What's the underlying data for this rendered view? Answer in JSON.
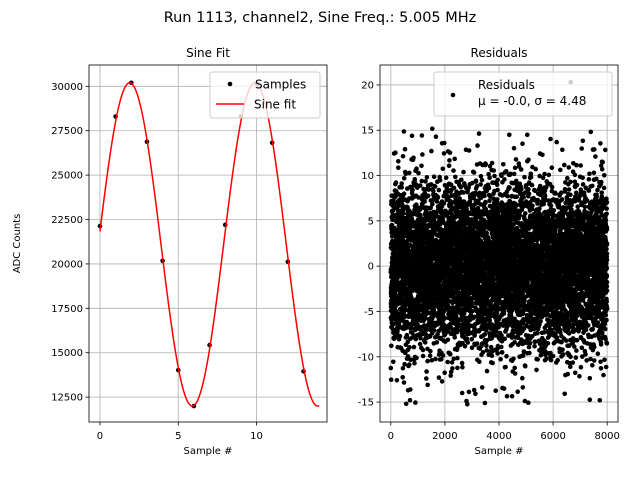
{
  "title": "Run 1113, channel2, Sine Freq.: 5.005 MHz",
  "chart_data": [
    {
      "type": "line",
      "title": "Sine Fit",
      "xlabel": "Sample #",
      "ylabel": "ADC Counts",
      "xlim": [
        -0.7,
        14.5
      ],
      "ylim": [
        11100,
        31200
      ],
      "xticks": [
        0,
        5,
        10
      ],
      "yticks": [
        12500,
        15000,
        17500,
        20000,
        22500,
        25000,
        27500,
        30000
      ],
      "grid": true,
      "legend_placement": "upper right",
      "series": [
        {
          "name": "Samples",
          "style": "points",
          "color": "#000000",
          "x": [
            0,
            1,
            2,
            3,
            4,
            5,
            6,
            7,
            8,
            9,
            10,
            11,
            12,
            13
          ],
          "y": [
            22130,
            28300,
            30200,
            26880,
            20170,
            14020,
            12000,
            15430,
            22200,
            28300,
            30150,
            26820,
            20120,
            13950
          ]
        },
        {
          "name": "Sine fit",
          "style": "line",
          "color": "#ff0000",
          "offset": 21100,
          "amplitude": 9100,
          "period": 8.0,
          "phase": 0.08,
          "x_range": [
            0,
            14
          ]
        }
      ]
    },
    {
      "type": "scatter",
      "title": "Residuals",
      "xlabel": "Sample #",
      "ylabel": "",
      "xlim": [
        -400,
        8400
      ],
      "ylim": [
        -17.2,
        22.2
      ],
      "xticks": [
        0,
        2000,
        4000,
        6000,
        8000
      ],
      "yticks": [
        -15,
        -10,
        -5,
        0,
        5,
        10,
        15,
        20
      ],
      "grid": true,
      "legend_placement": "upper right",
      "series": [
        {
          "name": "Residuals",
          "label_line2": "μ = -0.0, σ = 4.48",
          "color": "#000000",
          "n_points": 8000,
          "mean": 0.0,
          "std": 4.48,
          "min": -15.3,
          "max": 20.3
        }
      ]
    }
  ]
}
